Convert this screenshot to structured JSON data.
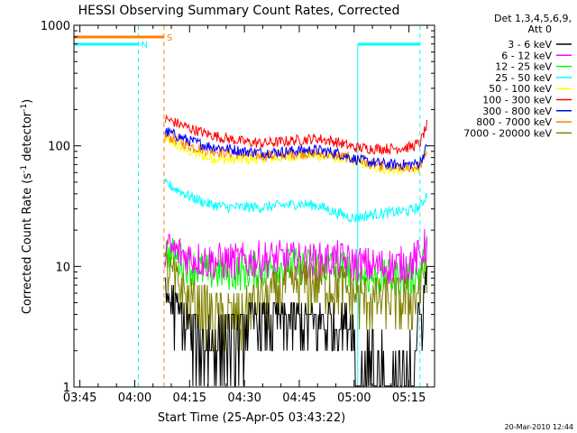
{
  "chart_data": {
    "type": "line",
    "title": "HESSI Observing Summary Count Rates, Corrected",
    "xlabel": "Start Time (25-Apr-05 03:43:22)",
    "ylabel": "Corrected Count Rate (s",
    "ylabel_sup1": "-1",
    "ylabel_mid": " detector",
    "ylabel_sup2": "-1",
    "ylabel_end": ")",
    "yscale": "log",
    "ylim": [
      1,
      1000
    ],
    "xlim": [
      "03:43:22",
      "05:22:00"
    ],
    "x_ticks": [
      "03:45",
      "04:00",
      "04:15",
      "04:30",
      "04:45",
      "05:00",
      "05:15"
    ],
    "y_ticks": [
      "1",
      "10",
      "100",
      "1000"
    ],
    "legend_header": [
      "Det 1,3,4,5,6,9,",
      "Att 0"
    ],
    "legend_placement": "right",
    "x": [
      "04:09",
      "04:15",
      "04:20",
      "04:25",
      "04:30",
      "04:35",
      "04:40",
      "04:45",
      "04:50",
      "04:55",
      "05:00",
      "05:05",
      "05:10",
      "05:15",
      "05:18",
      "05:20"
    ],
    "series": [
      {
        "name": "3 - 6 keV",
        "color": "#000000",
        "values": [
          5,
          2.5,
          2,
          2,
          2.5,
          2.5,
          2.5,
          2.5,
          2.5,
          2.5,
          2.5,
          1.3,
          1.3,
          1.3,
          3,
          8
        ]
      },
      {
        "name": "6 - 12 keV",
        "color": "#ff00ff",
        "values": [
          14,
          12,
          11,
          11,
          11,
          11.5,
          11.5,
          11,
          11,
          11.5,
          10.5,
          10,
          10,
          10.5,
          12,
          16
        ]
      },
      {
        "name": "12 - 25 keV",
        "color": "#00ff00",
        "values": [
          13,
          10,
          9,
          9,
          9,
          9.5,
          10,
          10,
          10,
          10,
          9,
          8,
          8,
          8,
          9,
          13
        ]
      },
      {
        "name": "25 - 50 keV",
        "color": "#00ffff",
        "values": [
          48,
          38,
          33,
          31,
          31,
          31,
          32,
          33,
          32,
          28,
          25,
          27,
          28,
          29,
          31,
          40
        ]
      },
      {
        "name": "50 - 100 keV",
        "color": "#ffff00",
        "values": [
          110,
          90,
          80,
          77,
          77,
          78,
          80,
          83,
          83,
          80,
          75,
          67,
          63,
          63,
          66,
          90
        ]
      },
      {
        "name": "100 - 300 keV",
        "color": "#ff0000",
        "values": [
          165,
          140,
          125,
          115,
          108,
          105,
          108,
          112,
          115,
          108,
          97,
          95,
          95,
          97,
          105,
          150
        ]
      },
      {
        "name": "300 - 800 keV",
        "color": "#0000ff",
        "values": [
          130,
          110,
          100,
          95,
          90,
          88,
          89,
          92,
          92,
          88,
          78,
          73,
          70,
          70,
          72,
          100
        ]
      },
      {
        "name": "800 - 7000 keV",
        "color": "#ff8000",
        "values": [
          120,
          100,
          92,
          88,
          85,
          83,
          84,
          87,
          87,
          83,
          78,
          70,
          66,
          66,
          68,
          92
        ]
      },
      {
        "name": "7000 - 20000 keV",
        "color": "#808000",
        "values": [
          9,
          5,
          4,
          3.5,
          4,
          5,
          6,
          7,
          7.5,
          6.5,
          5.5,
          5,
          5,
          5,
          6,
          10
        ]
      }
    ],
    "flags": [
      {
        "label": "N",
        "color": "#00ffff",
        "start": "03:43:22",
        "end": "04:01",
        "edge": "04:01"
      },
      {
        "label": "S",
        "color": "#ff8000",
        "start": "03:43:22",
        "end": "04:08",
        "edge": "04:08"
      },
      {
        "label": "",
        "color": "#00ffff",
        "start": "05:01",
        "end": "05:18",
        "edge": "05:18"
      }
    ],
    "data_start": "04:08",
    "footer": "20-Mar-2010 12:44"
  }
}
